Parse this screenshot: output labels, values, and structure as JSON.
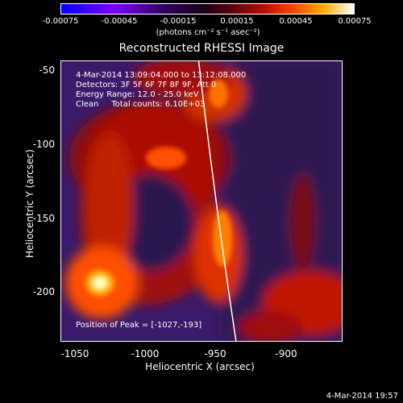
{
  "colorbar": {
    "ticks": [
      "-0.00075",
      "-0.00045",
      "-0.00015",
      "0.00015",
      "0.00045",
      "0.00075"
    ],
    "label": "(photons cm⁻² s⁻¹ asec⁻²)"
  },
  "title": "Reconstructed RHESSI Image",
  "info": {
    "time": "4-Mar-2014 13:09:04.000 to 13:12:08.000",
    "detectors": "Detectors: 3F 5F 6F 7F 8F 9F, Att 0",
    "energy": "Energy Range: 12.0 - 25.0 keV",
    "clean": "Clean     Total counts: 6.10E+03"
  },
  "peak": "Position of Peak = [-1027,-193]",
  "axes": {
    "xlabel": "Heliocentric X (arcsec)",
    "ylabel": "Heliocentric Y (arcsec)",
    "xticks": [
      "-1050",
      "-1000",
      "-950",
      "-900"
    ],
    "yticks": [
      "-50",
      "-100",
      "-150",
      "-200"
    ]
  },
  "timestamp": "4-Mar-2014 19:57"
}
